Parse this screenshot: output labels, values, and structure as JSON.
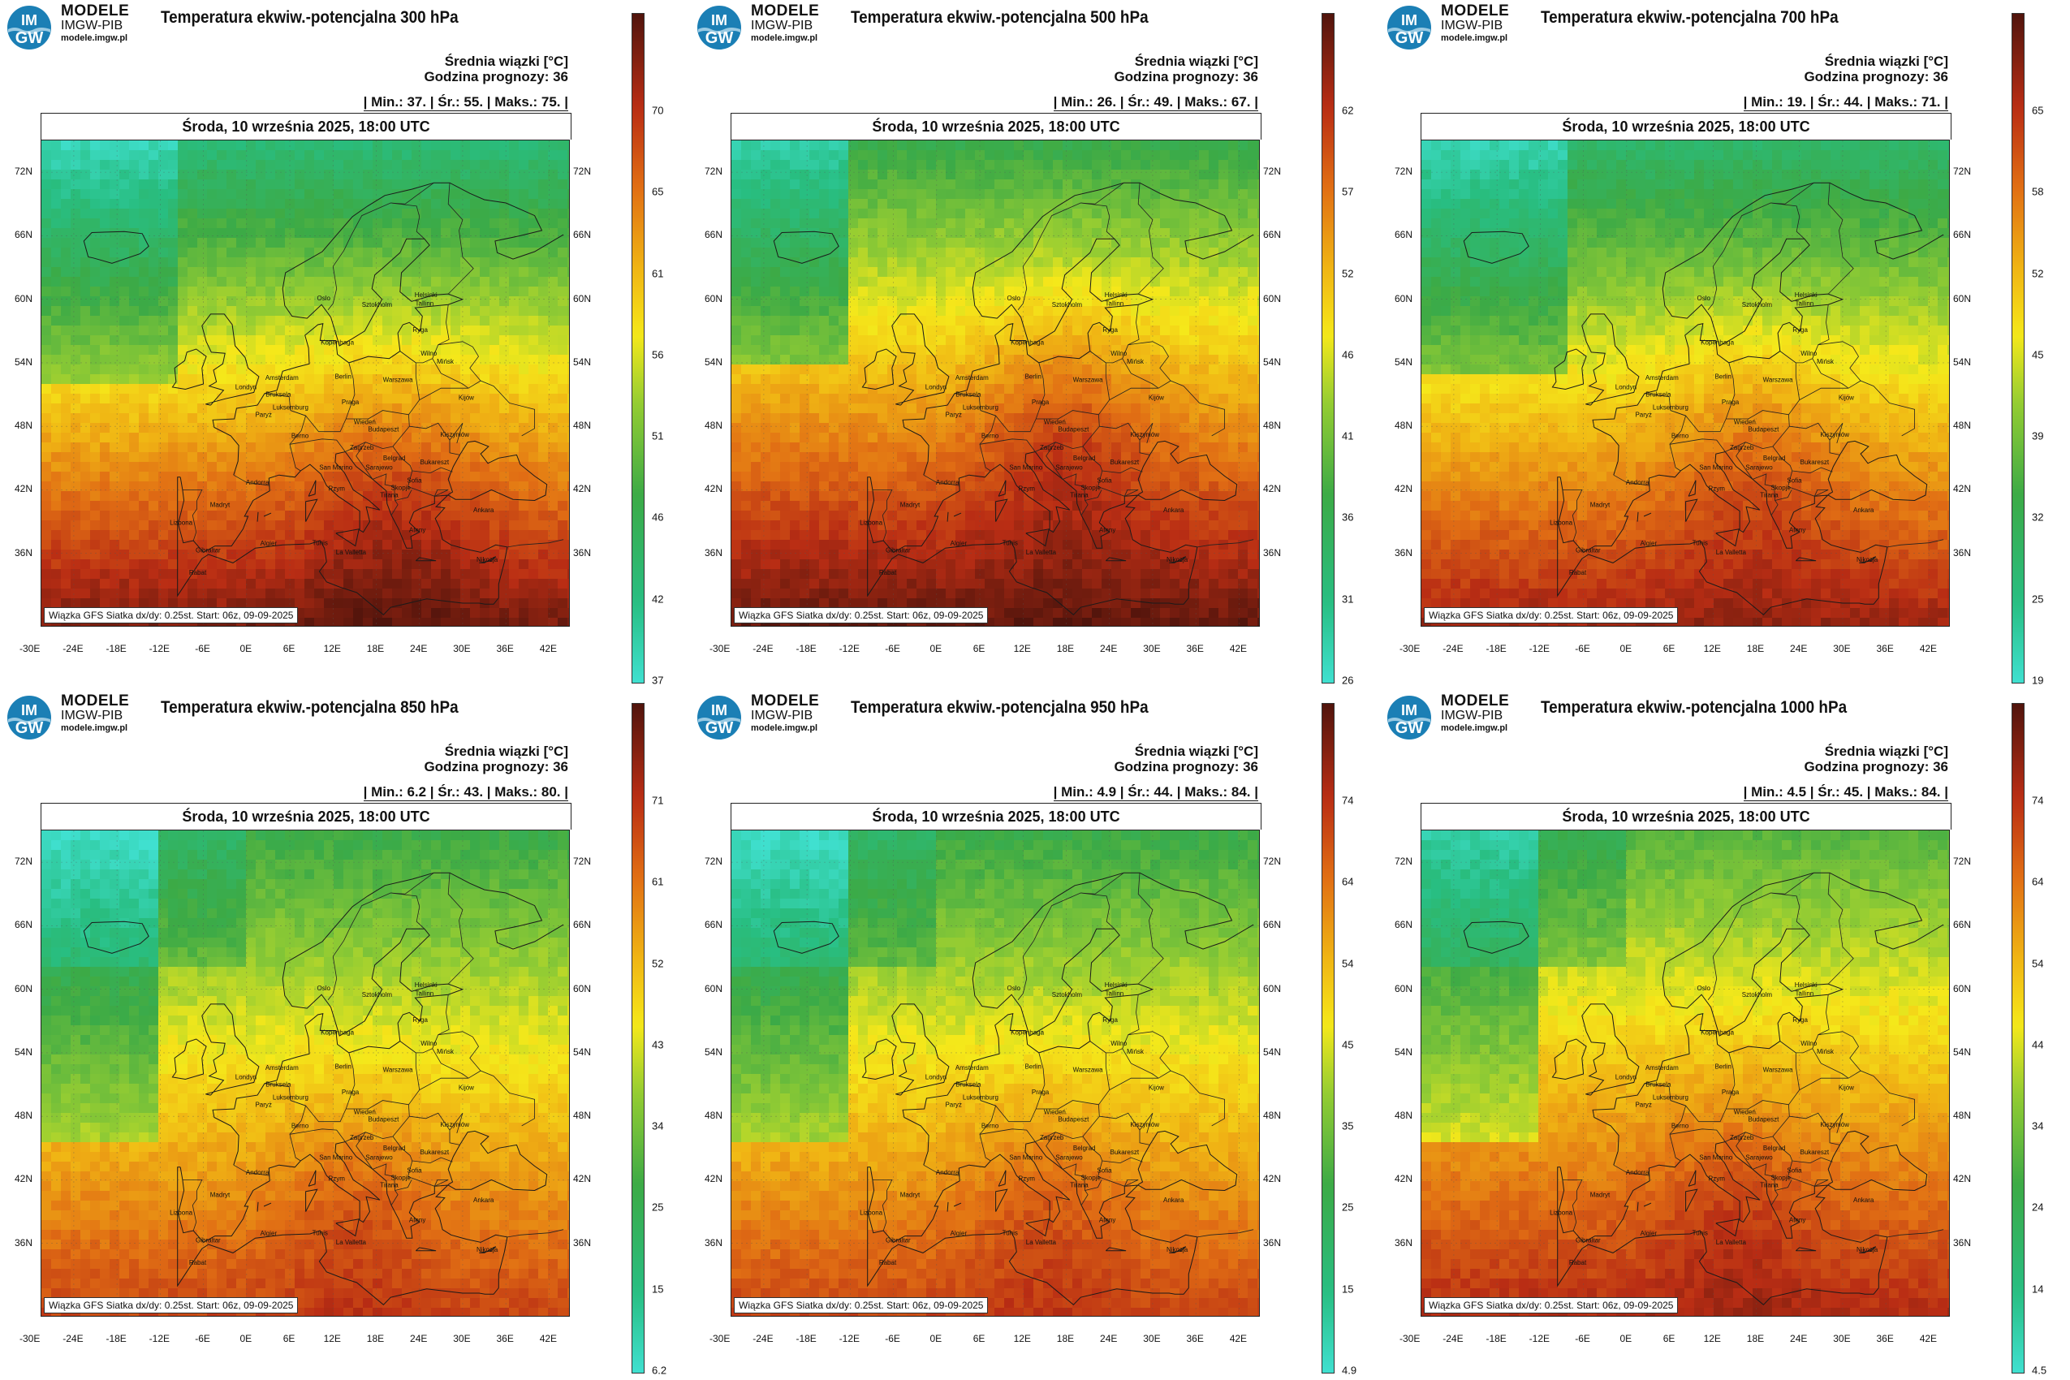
{
  "brand": {
    "line1": "MODELE",
    "line2": "IMGW-PIB",
    "line3": "modele.imgw.pl",
    "logo_top": "IM",
    "logo_bottom": "GW"
  },
  "common": {
    "legend_title": "Średnia wiązki [°C]",
    "forecast_hour": "Godzina prognozy: 36",
    "date": "Środa, 10 września 2025, 18:00 UTC",
    "credit": "Wiązka GFS Siatka dx/dy: 0.25st. Start: 06z, 09-09-2025",
    "lat_labels": [
      "72N",
      "66N",
      "60N",
      "54N",
      "48N",
      "42N",
      "36N"
    ],
    "lon_labels": [
      "-30E",
      "-24E",
      "-18E",
      "-12E",
      "-6E",
      "0E",
      "6E",
      "12E",
      "18E",
      "24E",
      "30E",
      "36E",
      "42E"
    ],
    "cities": [
      "Oslo",
      "Sztokholm",
      "Helsinki",
      "Tallinn",
      "Ryga",
      "Kopenhaga",
      "Wilno",
      "Mińsk",
      "Amsterdam",
      "Londyn",
      "Bruksela",
      "Berlin",
      "Warszawa",
      "Luksemburg",
      "Paryż",
      "Praga",
      "Kijów",
      "Wiedeń",
      "Berno",
      "Budapeszt",
      "Kiszyniów",
      "Zagrzeb",
      "Belgrad",
      "Bukareszt",
      "San Marino",
      "Sarajewo",
      "Sofia",
      "Andorra",
      "Rzym",
      "Skopje",
      "Tirana",
      "Madryt",
      "Ankara",
      "Lizbona",
      "Ateny",
      "Gibraltar",
      "Algier",
      "Tunis",
      "La Valletta",
      "Rabat",
      "Nikozja"
    ],
    "colors": {
      "low": "#40e0d0",
      "mid": "#f5e81a",
      "high": "#5a1a10"
    }
  },
  "panels": [
    {
      "title": "Temperatura ekwiw.-potencjalna 300 hPa",
      "stats": "| Min.:   37. | Śr.:   55. | Maks.:   75. |",
      "ticks": [
        "70",
        "65",
        "61",
        "56",
        "51",
        "46",
        "42",
        "37"
      ],
      "min": 37,
      "mean": 55,
      "max": 75,
      "level": 300
    },
    {
      "title": "Temperatura ekwiw.-potencjalna 500 hPa",
      "stats": "| Min.:   26. | Śr.:   49. | Maks.:   67. |",
      "ticks": [
        "62",
        "57",
        "52",
        "46",
        "41",
        "36",
        "31",
        "26"
      ],
      "min": 26,
      "mean": 49,
      "max": 67,
      "level": 500
    },
    {
      "title": "Temperatura ekwiw.-potencjalna 700 hPa",
      "stats": "| Min.:   19. | Śr.:   44. | Maks.:   71. |",
      "ticks": [
        "65",
        "58",
        "52",
        "45",
        "39",
        "32",
        "25",
        "19"
      ],
      "min": 19,
      "mean": 44,
      "max": 71,
      "level": 700
    },
    {
      "title": "Temperatura ekwiw.-potencjalna 850 hPa",
      "stats": "| Min.:   6.2 | Śr.:   43. | Maks.:   80. |",
      "ticks": [
        "71",
        "61",
        "52",
        "43",
        "34",
        "25",
        "15",
        "6.2"
      ],
      "min": 6.2,
      "mean": 43,
      "max": 80,
      "level": 850
    },
    {
      "title": "Temperatura ekwiw.-potencjalna 950 hPa",
      "stats": "| Min.:   4.9 | Śr.:   44. | Maks.:   84. |",
      "ticks": [
        "74",
        "64",
        "54",
        "45",
        "35",
        "25",
        "15",
        "4.9"
      ],
      "min": 4.9,
      "mean": 44,
      "max": 84,
      "level": 950
    },
    {
      "title": "Temperatura ekwiw.-potencjalna 1000 hPa",
      "stats": "| Min.:   4.5 | Śr.:   45. | Maks.:   84. |",
      "ticks": [
        "74",
        "64",
        "54",
        "44",
        "34",
        "24",
        "14",
        "4.5"
      ],
      "min": 4.5,
      "mean": 45,
      "max": 84,
      "level": 1000
    }
  ]
}
